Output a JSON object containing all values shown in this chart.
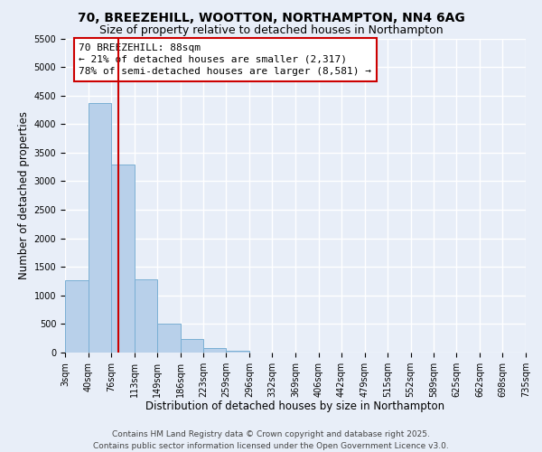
{
  "title": "70, BREEZEHILL, WOOTTON, NORTHAMPTON, NN4 6AG",
  "subtitle": "Size of property relative to detached houses in Northampton",
  "xlabel": "Distribution of detached houses by size in Northampton",
  "ylabel": "Number of detached properties",
  "bin_edges": [
    3,
    40,
    76,
    113,
    149,
    186,
    223,
    259,
    296,
    332,
    369,
    406,
    442,
    479,
    515,
    552,
    589,
    625,
    662,
    698,
    735
  ],
  "bar_heights": [
    1270,
    4370,
    3300,
    1280,
    500,
    230,
    80,
    30,
    0,
    0,
    0,
    0,
    0,
    0,
    0,
    0,
    0,
    0,
    0,
    0
  ],
  "bar_color": "#b8d0ea",
  "bar_edge_color": "#7aafd4",
  "bar_edge_width": 0.7,
  "vline_x": 88,
  "vline_color": "#cc0000",
  "ylim": [
    0,
    5500
  ],
  "yticks": [
    0,
    500,
    1000,
    1500,
    2000,
    2500,
    3000,
    3500,
    4000,
    4500,
    5000,
    5500
  ],
  "annotation_title": "70 BREEZEHILL: 88sqm",
  "annotation_line1": "← 21% of detached houses are smaller (2,317)",
  "annotation_line2": "78% of semi-detached houses are larger (8,581) →",
  "annotation_box_color": "#ffffff",
  "annotation_box_edge": "#cc0000",
  "bg_color": "#e8eef8",
  "grid_color": "#ffffff",
  "footer_line1": "Contains HM Land Registry data © Crown copyright and database right 2025.",
  "footer_line2": "Contains public sector information licensed under the Open Government Licence v3.0.",
  "title_fontsize": 10,
  "subtitle_fontsize": 9,
  "xlabel_fontsize": 8.5,
  "ylabel_fontsize": 8.5,
  "tick_fontsize": 7,
  "annotation_fontsize": 8,
  "footer_fontsize": 6.5
}
